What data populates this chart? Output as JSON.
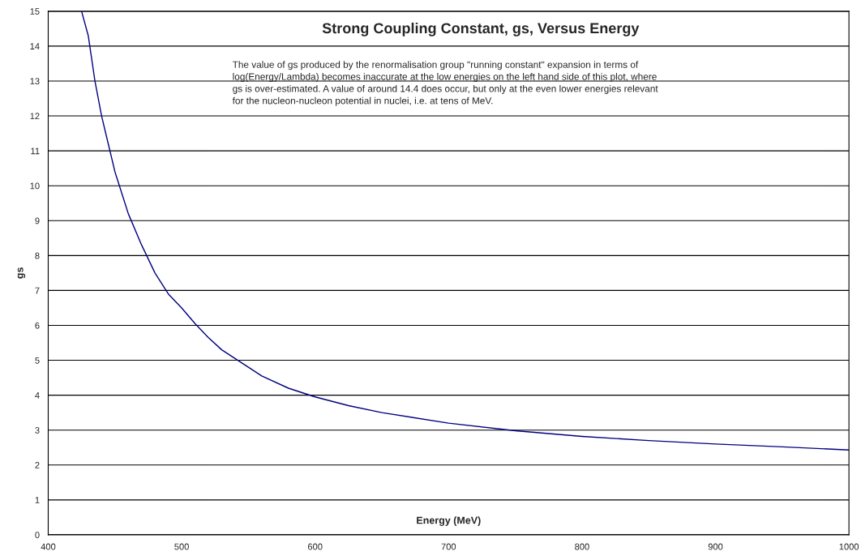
{
  "chart_data": {
    "type": "line",
    "title": "Strong Coupling Constant, gs, Versus Energy",
    "xlabel": "Energy (MeV)",
    "ylabel": "gs",
    "annotations": [
      "The value of gs produced by the renormalisation group \"running constant\" expansion in terms of log(Energy/Lambda) becomes inaccurate at the low energies on the left hand side of this plot, where gs is over-estimated. A value of around 14.4 does occur, but only at the even lower energies relevant for the nucleon-nucleon potential in nuclei, i.e. at tens of MeV."
    ],
    "x": [
      425,
      430,
      435,
      440,
      445,
      450,
      460,
      470,
      480,
      490,
      500,
      510,
      520,
      530,
      540,
      550,
      560,
      580,
      600,
      625,
      650,
      700,
      750,
      800,
      850,
      900,
      950,
      1000
    ],
    "series": [
      {
        "color": "#000080",
        "values": [
          15,
          14.3,
          13,
          12,
          11.2,
          10.4,
          9.2,
          8.3,
          7.5,
          6.9,
          6.5,
          6.05,
          5.65,
          5.3,
          5.05,
          4.8,
          4.55,
          4.2,
          3.95,
          3.7,
          3.5,
          3.2,
          2.98,
          2.82,
          2.7,
          2.6,
          2.52,
          2.43
        ]
      }
    ],
    "xlim": [
      400,
      1000
    ],
    "xticks": [
      400,
      500,
      600,
      700,
      800,
      900,
      1000
    ],
    "ylim": [
      0,
      15
    ],
    "yticks": [
      0,
      1,
      2,
      3,
      4,
      5,
      6,
      7,
      8,
      9,
      10,
      11,
      12,
      13,
      14,
      15
    ],
    "grid": "y",
    "marker": "none",
    "line_style": "solid"
  }
}
